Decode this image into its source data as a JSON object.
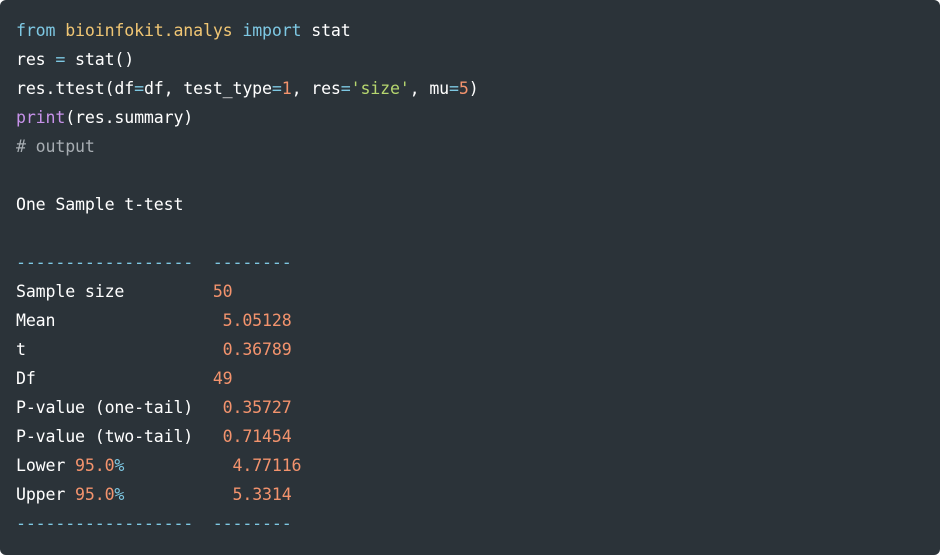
{
  "colors": {
    "background": "#2b3339",
    "keyword": "#7ec8e3",
    "module": "#f0c674",
    "number": "#f3936d",
    "string": "#b6d66f",
    "builtin": "#c792ea",
    "comment": "#a7adb2",
    "text": "#ffffff"
  },
  "lines": [
    [
      {
        "t": "from",
        "c": "kw"
      },
      {
        "t": " ",
        "c": "txt"
      },
      {
        "t": "bioinfokit.analys",
        "c": "mod"
      },
      {
        "t": " ",
        "c": "txt"
      },
      {
        "t": "import",
        "c": "kw"
      },
      {
        "t": " stat",
        "c": "txt"
      }
    ],
    [
      {
        "t": "res ",
        "c": "txt"
      },
      {
        "t": "=",
        "c": "op"
      },
      {
        "t": " stat()",
        "c": "txt"
      }
    ],
    [
      {
        "t": "res.ttest(df",
        "c": "txt"
      },
      {
        "t": "=",
        "c": "op"
      },
      {
        "t": "df, test_type",
        "c": "txt"
      },
      {
        "t": "=",
        "c": "op"
      },
      {
        "t": "1",
        "c": "num"
      },
      {
        "t": ", res",
        "c": "txt"
      },
      {
        "t": "=",
        "c": "op"
      },
      {
        "t": "'size'",
        "c": "str"
      },
      {
        "t": ", mu",
        "c": "txt"
      },
      {
        "t": "=",
        "c": "op"
      },
      {
        "t": "5",
        "c": "num"
      },
      {
        "t": ")",
        "c": "txt"
      }
    ],
    [
      {
        "t": "print",
        "c": "fn"
      },
      {
        "t": "(res.summary)",
        "c": "txt"
      }
    ],
    [
      {
        "t": "# output",
        "c": "cm"
      }
    ],
    [],
    [
      {
        "t": "One Sample t-test",
        "c": "txt"
      }
    ],
    [],
    [
      {
        "t": "------------------  --------",
        "c": "op"
      }
    ],
    [
      {
        "t": "Sample size         ",
        "c": "txt"
      },
      {
        "t": "50",
        "c": "num"
      }
    ],
    [
      {
        "t": "Mean                 ",
        "c": "txt"
      },
      {
        "t": "5.05128",
        "c": "num"
      }
    ],
    [
      {
        "t": "t                    ",
        "c": "txt"
      },
      {
        "t": "0.36789",
        "c": "num"
      }
    ],
    [
      {
        "t": "Df                  ",
        "c": "txt"
      },
      {
        "t": "49",
        "c": "num"
      }
    ],
    [
      {
        "t": "P-value (one-tail)   ",
        "c": "txt"
      },
      {
        "t": "0.35727",
        "c": "num"
      }
    ],
    [
      {
        "t": "P-value (two-tail)   ",
        "c": "txt"
      },
      {
        "t": "0.71454",
        "c": "num"
      }
    ],
    [
      {
        "t": "Lower ",
        "c": "txt"
      },
      {
        "t": "95.0",
        "c": "num"
      },
      {
        "t": "%",
        "c": "op"
      },
      {
        "t": "           ",
        "c": "txt"
      },
      {
        "t": "4.77116",
        "c": "num"
      }
    ],
    [
      {
        "t": "Upper ",
        "c": "txt"
      },
      {
        "t": "95.0",
        "c": "num"
      },
      {
        "t": "%",
        "c": "op"
      },
      {
        "t": "           ",
        "c": "txt"
      },
      {
        "t": "5.3314",
        "c": "num"
      }
    ],
    [
      {
        "t": "------------------  --------",
        "c": "op"
      }
    ]
  ]
}
